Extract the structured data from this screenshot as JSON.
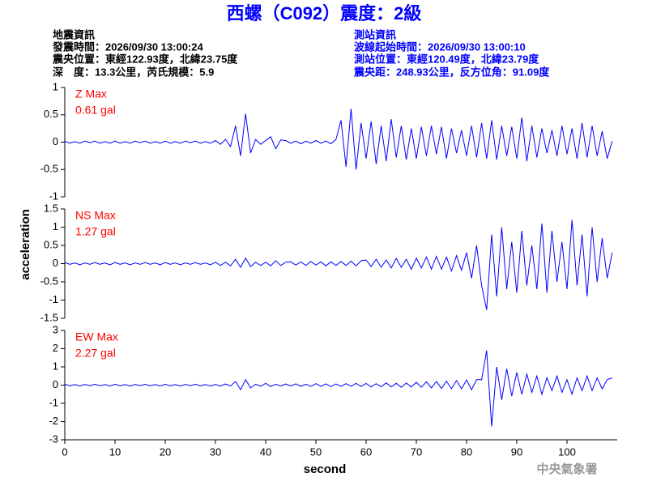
{
  "header": {
    "title": "西螺（C092）震度：2級",
    "info_left": [
      "地震資訊",
      "發震時間：2026/09/30 13:00:24",
      "震央位置：東經122.93度，北緯23.75度",
      "深　度：13.3公里，芮氏規模：5.9"
    ],
    "info_right": [
      "測站資訊",
      "波線起始時間：2026/09/30 13:00:10",
      "測站位置：東經120.49度，北緯23.79度",
      "震央距：248.93公里，反方位角：91.09度"
    ]
  },
  "ylabel": "acceleration",
  "footer": "中央氣象署",
  "chart_data": [
    {
      "type": "line",
      "annotations": [
        "Z Max",
        "0.61 gal"
      ],
      "color": "#0000ff",
      "x": [
        0,
        1,
        2,
        3,
        4,
        5,
        6,
        7,
        8,
        9,
        10,
        11,
        12,
        13,
        14,
        15,
        16,
        17,
        18,
        19,
        20,
        21,
        22,
        23,
        24,
        25,
        26,
        27,
        28,
        29,
        30,
        31,
        32,
        33,
        34,
        35,
        36,
        37,
        38,
        39,
        40,
        41,
        42,
        43,
        44,
        45,
        46,
        47,
        48,
        49,
        50,
        51,
        52,
        53,
        54,
        55,
        56,
        57,
        58,
        59,
        60,
        61,
        62,
        63,
        64,
        65,
        66,
        67,
        68,
        69,
        70,
        71,
        72,
        73,
        74,
        75,
        76,
        77,
        78,
        79,
        80,
        81,
        82,
        83,
        84,
        85,
        86,
        87,
        88,
        89,
        90,
        91,
        92,
        93,
        94,
        95,
        96,
        97,
        98,
        99,
        100,
        101,
        102,
        103,
        104,
        105,
        106,
        107,
        108,
        109
      ],
      "values": [
        0.02,
        -0.02,
        0.01,
        -0.02,
        0.02,
        -0.01,
        0.02,
        -0.02,
        0.01,
        -0.02,
        0.02,
        -0.02,
        0.01,
        -0.02,
        0.02,
        -0.01,
        0.02,
        -0.02,
        0.01,
        -0.02,
        0.02,
        -0.02,
        0.01,
        -0.02,
        0.02,
        -0.01,
        0.02,
        -0.02,
        0.01,
        -0.02,
        0.03,
        -0.04,
        0.05,
        -0.08,
        0.3,
        -0.25,
        0.52,
        -0.2,
        0.05,
        -0.04,
        0.03,
        0.1,
        -0.12,
        0.04,
        0.03,
        -0.02,
        0.02,
        -0.03,
        0.02,
        -0.02,
        0.03,
        -0.02,
        0.02,
        -0.03,
        0.05,
        0.4,
        -0.45,
        0.61,
        -0.5,
        0.35,
        -0.3,
        0.38,
        -0.4,
        0.3,
        -0.35,
        0.42,
        -0.28,
        0.3,
        -0.32,
        0.25,
        -0.3,
        0.28,
        -0.25,
        0.3,
        -0.22,
        0.28,
        -0.3,
        0.25,
        -0.2,
        0.22,
        -0.25,
        0.3,
        -0.28,
        0.35,
        -0.3,
        0.4,
        -0.32,
        0.3,
        -0.25,
        0.28,
        -0.3,
        0.45,
        -0.35,
        0.3,
        -0.28,
        0.25,
        -0.2,
        0.22,
        -0.25,
        0.3,
        -0.22,
        0.25,
        -0.3,
        0.35,
        -0.28,
        0.3,
        -0.25,
        0.2,
        -0.3,
        0.02
      ],
      "xlim": [
        0,
        110
      ],
      "ylim": [
        -1,
        1
      ],
      "yticks": [
        -1,
        -0.5,
        0,
        0.5,
        1
      ]
    },
    {
      "type": "line",
      "annotations": [
        "NS Max",
        "1.27 gal"
      ],
      "color": "#0000ff",
      "x": [
        0,
        1,
        2,
        3,
        4,
        5,
        6,
        7,
        8,
        9,
        10,
        11,
        12,
        13,
        14,
        15,
        16,
        17,
        18,
        19,
        20,
        21,
        22,
        23,
        24,
        25,
        26,
        27,
        28,
        29,
        30,
        31,
        32,
        33,
        34,
        35,
        36,
        37,
        38,
        39,
        40,
        41,
        42,
        43,
        44,
        45,
        46,
        47,
        48,
        49,
        50,
        51,
        52,
        53,
        54,
        55,
        56,
        57,
        58,
        59,
        60,
        61,
        62,
        63,
        64,
        65,
        66,
        67,
        68,
        69,
        70,
        71,
        72,
        73,
        74,
        75,
        76,
        77,
        78,
        79,
        80,
        81,
        82,
        83,
        84,
        85,
        86,
        87,
        88,
        89,
        90,
        91,
        92,
        93,
        94,
        95,
        96,
        97,
        98,
        99,
        100,
        101,
        102,
        103,
        104,
        105,
        106,
        107,
        108,
        109
      ],
      "values": [
        0.03,
        -0.02,
        0.02,
        -0.03,
        0.02,
        -0.02,
        0.03,
        -0.02,
        0.02,
        -0.03,
        0.03,
        -0.02,
        0.02,
        -0.03,
        0.02,
        -0.02,
        0.03,
        -0.02,
        0.02,
        -0.03,
        0.03,
        -0.02,
        0.02,
        -0.03,
        0.02,
        -0.02,
        0.03,
        -0.02,
        0.02,
        -0.03,
        0.04,
        -0.05,
        0.04,
        -0.06,
        0.12,
        -0.1,
        0.15,
        -0.08,
        0.04,
        -0.05,
        0.04,
        -0.06,
        0.08,
        -0.05,
        0.04,
        0.05,
        -0.04,
        0.05,
        -0.05,
        0.06,
        -0.04,
        0.05,
        -0.06,
        0.05,
        -0.05,
        0.06,
        -0.05,
        0.07,
        -0.06,
        0.08,
        0.1,
        -0.08,
        0.12,
        -0.1,
        0.1,
        -0.12,
        0.14,
        -0.1,
        0.12,
        -0.15,
        0.15,
        -0.12,
        0.18,
        -0.15,
        0.2,
        -0.15,
        0.18,
        -0.2,
        0.22,
        -0.18,
        0.3,
        -0.4,
        0.5,
        -0.6,
        -1.27,
        0.8,
        -0.9,
        1.0,
        -0.7,
        0.6,
        -0.8,
        0.9,
        -0.6,
        0.5,
        -0.7,
        1.1,
        -0.8,
        0.9,
        -0.5,
        0.6,
        -0.7,
        1.2,
        -0.6,
        0.8,
        -0.9,
        1.0,
        -0.5,
        0.7,
        -0.4,
        0.3
      ],
      "xlim": [
        0,
        110
      ],
      "ylim": [
        -1.5,
        1.5
      ],
      "yticks": [
        -1.5,
        -1,
        -0.5,
        0,
        0.5,
        1,
        1.5
      ]
    },
    {
      "type": "line",
      "annotations": [
        "EW Max",
        "2.27 gal"
      ],
      "color": "#0000ff",
      "x": [
        0,
        1,
        2,
        3,
        4,
        5,
        6,
        7,
        8,
        9,
        10,
        11,
        12,
        13,
        14,
        15,
        16,
        17,
        18,
        19,
        20,
        21,
        22,
        23,
        24,
        25,
        26,
        27,
        28,
        29,
        30,
        31,
        32,
        33,
        34,
        35,
        36,
        37,
        38,
        39,
        40,
        41,
        42,
        43,
        44,
        45,
        46,
        47,
        48,
        49,
        50,
        51,
        52,
        53,
        54,
        55,
        56,
        57,
        58,
        59,
        60,
        61,
        62,
        63,
        64,
        65,
        66,
        67,
        68,
        69,
        70,
        71,
        72,
        73,
        74,
        75,
        76,
        77,
        78,
        79,
        80,
        81,
        82,
        83,
        84,
        85,
        86,
        87,
        88,
        89,
        90,
        91,
        92,
        93,
        94,
        95,
        96,
        97,
        98,
        99,
        100,
        101,
        102,
        103,
        104,
        105,
        106,
        107,
        108,
        109
      ],
      "values": [
        0.05,
        -0.04,
        0.03,
        -0.05,
        0.04,
        -0.03,
        0.05,
        -0.04,
        0.03,
        -0.05,
        0.05,
        -0.04,
        0.03,
        -0.05,
        0.04,
        -0.03,
        0.05,
        -0.04,
        0.03,
        -0.05,
        0.05,
        -0.04,
        0.03,
        -0.05,
        0.04,
        -0.03,
        0.05,
        -0.04,
        0.03,
        -0.05,
        0.04,
        -0.05,
        0.06,
        -0.05,
        0.2,
        -0.25,
        0.3,
        -0.15,
        0.05,
        -0.06,
        0.1,
        -0.08,
        0.05,
        -0.05,
        0.06,
        -0.05,
        0.07,
        -0.06,
        0.05,
        -0.07,
        0.08,
        -0.06,
        0.07,
        -0.08,
        0.06,
        -0.07,
        0.08,
        -0.06,
        0.1,
        -0.08,
        0.09,
        -0.1,
        0.08,
        -0.09,
        0.12,
        -0.1,
        0.1,
        -0.12,
        0.11,
        -0.1,
        0.15,
        -0.12,
        0.18,
        -0.15,
        0.2,
        -0.18,
        0.22,
        -0.2,
        0.25,
        -0.2,
        0.28,
        -0.25,
        0.3,
        0.3,
        1.9,
        -2.27,
        1.0,
        -0.8,
        0.9,
        -0.6,
        0.7,
        -0.5,
        0.6,
        -0.4,
        0.5,
        -0.5,
        0.4,
        -0.3,
        0.5,
        -0.4,
        0.3,
        -0.5,
        0.4,
        -0.3,
        0.5,
        -0.3,
        0.4,
        -0.2,
        0.3,
        0.4
      ],
      "xlim": [
        0,
        110
      ],
      "ylim": [
        -3,
        3
      ],
      "yticks": [
        -3,
        -2,
        -1,
        0,
        1,
        2,
        3
      ],
      "xlabel": "second",
      "xticks": [
        0,
        10,
        20,
        30,
        40,
        50,
        60,
        70,
        80,
        90,
        100
      ]
    }
  ]
}
